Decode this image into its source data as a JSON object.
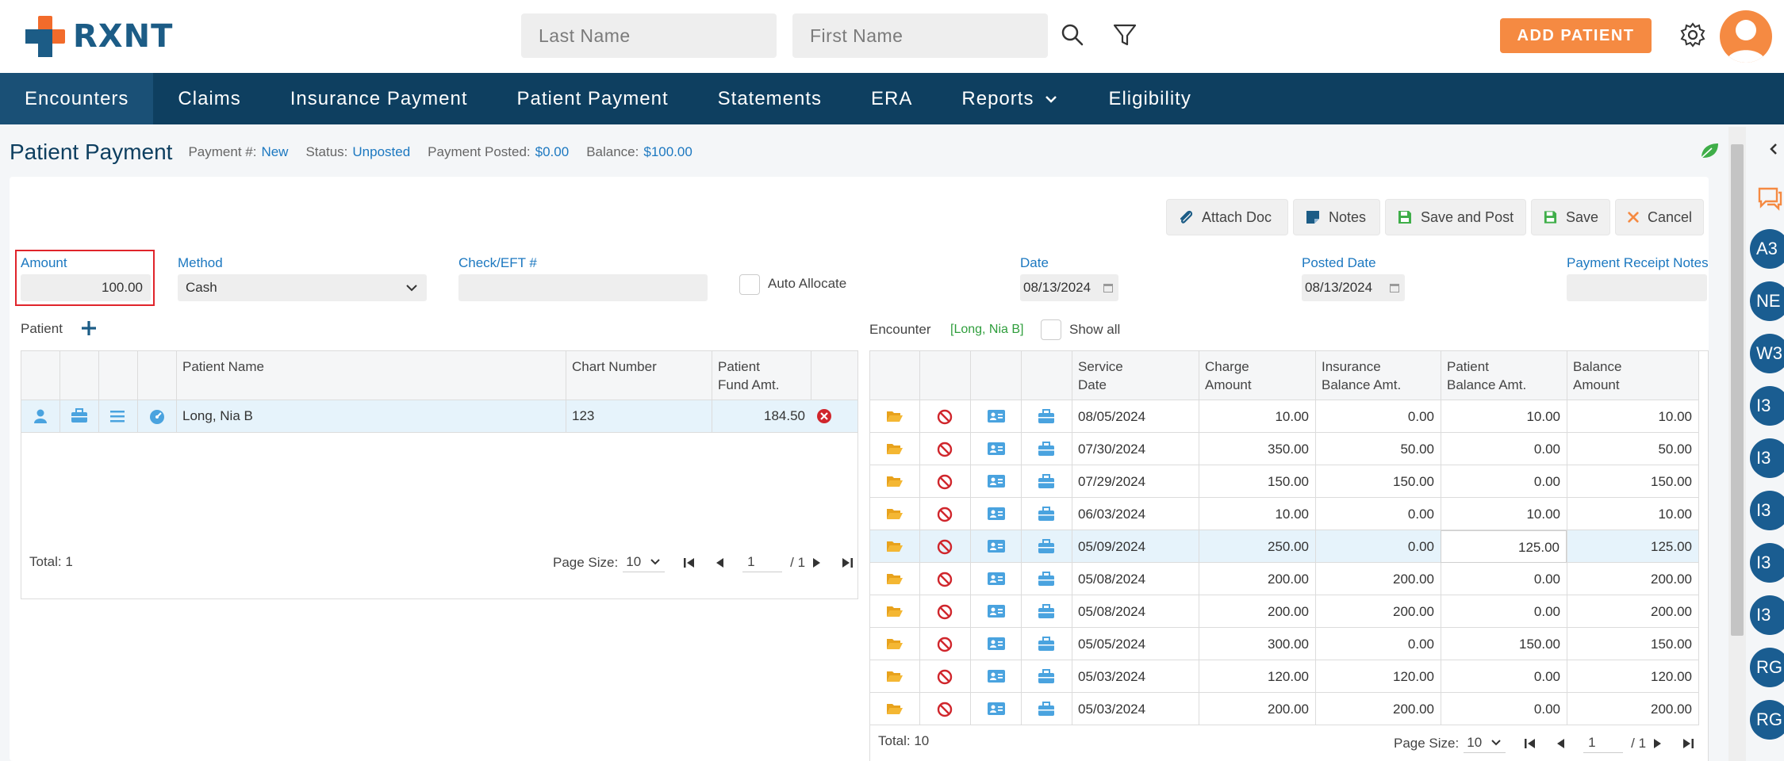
{
  "header": {
    "logo_text": "RXNT",
    "last_name_placeholder": "Last Name",
    "first_name_placeholder": "First Name",
    "add_patient_label": "ADD PATIENT"
  },
  "nav": {
    "items": [
      "Encounters",
      "Claims",
      "Insurance Payment",
      "Patient Payment",
      "Statements",
      "ERA",
      "Reports",
      "Eligibility"
    ]
  },
  "page": {
    "title": "Patient Payment",
    "payment_no_label": "Payment #:",
    "payment_no": "New",
    "status_label": "Status:",
    "status": "Unposted",
    "posted_label": "Payment Posted:",
    "posted": "$0.00",
    "balance_label": "Balance:",
    "balance": "$100.00"
  },
  "toolbar": {
    "attach_doc": "Attach Doc",
    "notes": "Notes",
    "save_and_post": "Save and Post",
    "save": "Save",
    "cancel": "Cancel"
  },
  "form": {
    "amount_label": "Amount",
    "amount_value": "100.00",
    "method_label": "Method",
    "method_value": "Cash",
    "check_label": "Check/EFT #",
    "check_value": "",
    "auto_allocate_label": "Auto Allocate",
    "date_label": "Date",
    "date_value": "08/13/2024",
    "posted_date_label": "Posted Date",
    "posted_date_value": "08/13/2024",
    "receipt_notes_label": "Payment Receipt Notes",
    "receipt_notes_value": ""
  },
  "patient_section": {
    "label": "Patient",
    "headers": {
      "name": "Patient Name",
      "chart": "Chart Number",
      "fund_1": "Patient",
      "fund_2": "Fund Amt."
    },
    "rows": [
      {
        "name": "Long, Nia B",
        "chart": "123",
        "fund": "184.50"
      }
    ],
    "total": "Total: 1",
    "page_size_label": "Page Size:",
    "page_size": "10",
    "page": "1",
    "page_of": "/ 1"
  },
  "encounter_section": {
    "label": "Encounter",
    "patient_tag": "[Long, Nia B]",
    "show_all_label": "Show all",
    "headers": {
      "service_1": "Service",
      "service_2": "Date",
      "charge_1": "Charge",
      "charge_2": "Amount",
      "ins_1": "Insurance",
      "ins_2": "Balance Amt.",
      "pat_1": "Patient",
      "pat_2": "Balance Amt.",
      "bal_1": "Balance",
      "bal_2": "Amount"
    },
    "rows": [
      {
        "date": "08/05/2024",
        "charge": "10.00",
        "ins": "0.00",
        "pat": "10.00",
        "bal": "10.00"
      },
      {
        "date": "07/30/2024",
        "charge": "350.00",
        "ins": "50.00",
        "pat": "0.00",
        "bal": "50.00"
      },
      {
        "date": "07/29/2024",
        "charge": "150.00",
        "ins": "150.00",
        "pat": "0.00",
        "bal": "150.00"
      },
      {
        "date": "06/03/2024",
        "charge": "10.00",
        "ins": "0.00",
        "pat": "10.00",
        "bal": "10.00"
      },
      {
        "date": "05/09/2024",
        "charge": "250.00",
        "ins": "0.00",
        "pat": "125.00",
        "bal": "125.00"
      },
      {
        "date": "05/08/2024",
        "charge": "200.00",
        "ins": "200.00",
        "pat": "0.00",
        "bal": "200.00"
      },
      {
        "date": "05/08/2024",
        "charge": "200.00",
        "ins": "200.00",
        "pat": "0.00",
        "bal": "200.00"
      },
      {
        "date": "05/05/2024",
        "charge": "300.00",
        "ins": "0.00",
        "pat": "150.00",
        "bal": "150.00"
      },
      {
        "date": "05/03/2024",
        "charge": "120.00",
        "ins": "120.00",
        "pat": "0.00",
        "bal": "120.00"
      },
      {
        "date": "05/03/2024",
        "charge": "200.00",
        "ins": "200.00",
        "pat": "0.00",
        "bal": "200.00"
      }
    ],
    "total": "Total: 10",
    "page_size_label": "Page Size:",
    "page_size": "10",
    "page": "1",
    "page_of": "/ 1"
  },
  "rail": {
    "badges": [
      "A3",
      "NE",
      "W3",
      "I3",
      "I3",
      "I3",
      "I3",
      "I3",
      "RG",
      "RG"
    ]
  },
  "colors": {
    "navy": "#0e3f60",
    "accent_orange": "#f58a42",
    "link_blue": "#1c78c0",
    "highlight_row": "#e6f3fb",
    "error_red": "#e0242b"
  }
}
